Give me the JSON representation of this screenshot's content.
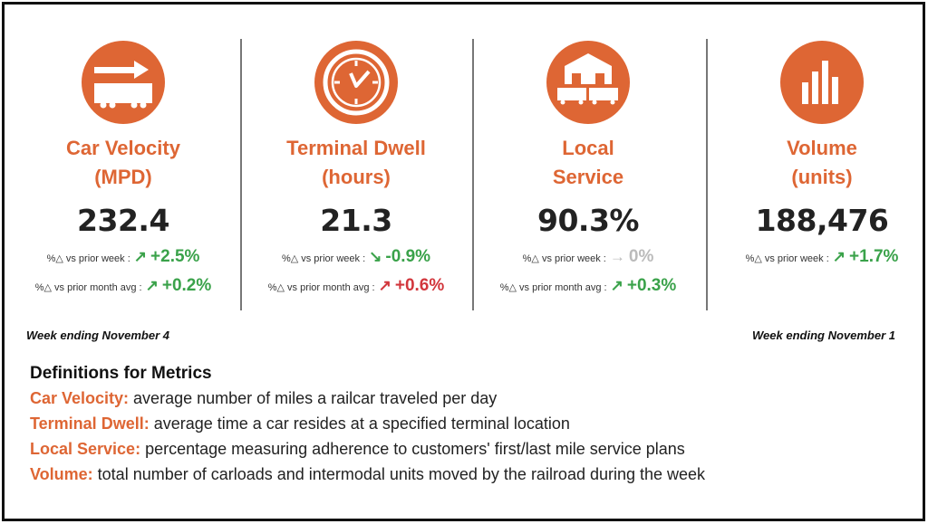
{
  "colors": {
    "accent": "#de6634",
    "up_good": "#3aa24a",
    "bad": "#d2363c",
    "neutral": "#bbbbbb"
  },
  "metrics": [
    {
      "icon": "railcar-arrow-icon",
      "title1": "Car Velocity",
      "title2": "(MPD)",
      "value": "232.4",
      "changes": [
        {
          "label": "%△ vs prior week :",
          "arrow": "↗",
          "pct": "+2.5%",
          "status": "good"
        },
        {
          "label": "%△ vs prior month avg :",
          "arrow": "↗",
          "pct": "+0.2%",
          "status": "good"
        }
      ]
    },
    {
      "icon": "clock-icon",
      "title1": "Terminal Dwell",
      "title2": "(hours)",
      "value": "21.3",
      "changes": [
        {
          "label": "%△ vs prior week :",
          "arrow": "↘",
          "pct": "-0.9%",
          "status": "good"
        },
        {
          "label": "%△ vs prior month avg :",
          "arrow": "↗",
          "pct": "+0.6%",
          "status": "bad"
        }
      ]
    },
    {
      "icon": "warehouse-railcars-icon",
      "title1": "Local",
      "title2": "Service",
      "value": "90.3%",
      "changes": [
        {
          "label": "%△ vs prior week :",
          "arrow": "→",
          "pct": "0%",
          "status": "neutral"
        },
        {
          "label": "%△ vs prior month avg :",
          "arrow": "↗",
          "pct": "+0.3%",
          "status": "good"
        }
      ]
    },
    {
      "icon": "bar-chart-icon",
      "title1": "Volume",
      "title2": "(units)",
      "value": "188,476",
      "changes": [
        {
          "label": "%△ vs prior week :",
          "arrow": "↗",
          "pct": "+1.7%",
          "status": "good"
        }
      ]
    }
  ],
  "week_left": "Week ending November 4",
  "week_right": "Week ending November 1",
  "definitions": {
    "heading": "Definitions for Metrics",
    "items": [
      {
        "term": "Car Velocity:",
        "text": " average number of miles a railcar traveled per day"
      },
      {
        "term": "Terminal Dwell:",
        "text": " average time a car resides at a specified terminal location"
      },
      {
        "term": "Local Service:",
        "text": " percentage measuring adherence to customers' first/last mile service plans"
      },
      {
        "term": "Volume:",
        "text": " total number of carloads and intermodal units moved by the railroad during the week"
      }
    ]
  }
}
